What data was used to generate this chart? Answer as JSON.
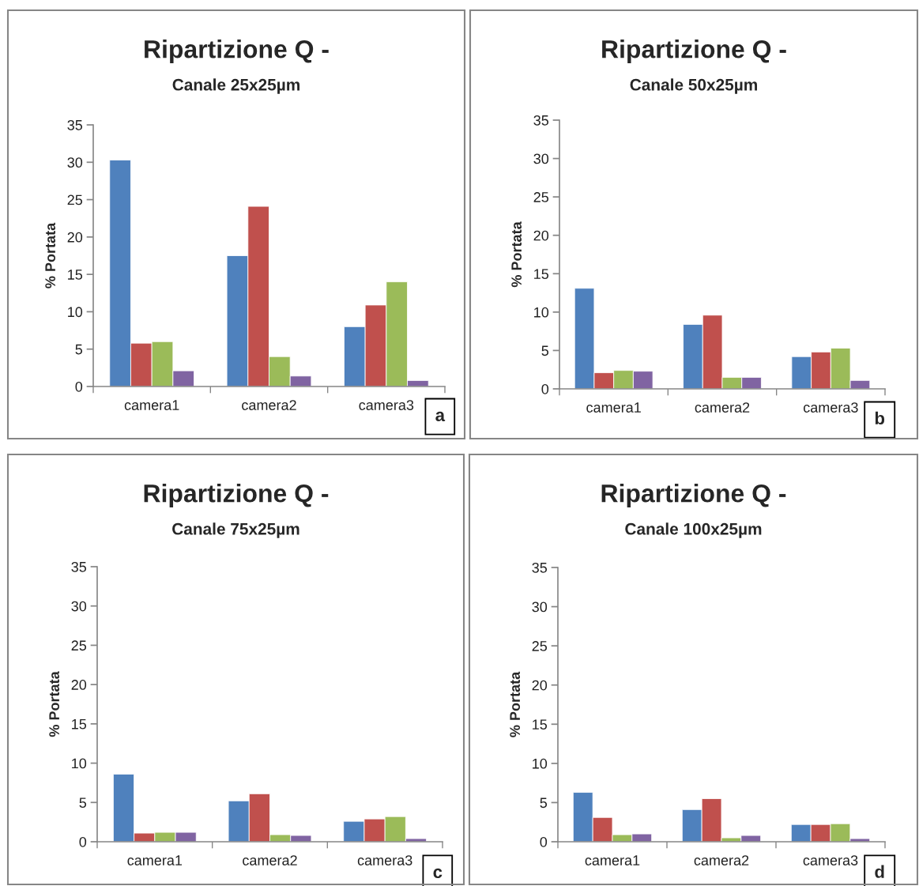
{
  "chart_data": [
    {
      "type": "bar",
      "title": "Ripartizione Q -",
      "subtitle": "Canale 25x25µm",
      "ylabel": "% Portata",
      "categories": [
        "camera1",
        "camera2",
        "camera3"
      ],
      "ylim": [
        0,
        35
      ],
      "yticks": [
        0,
        5,
        10,
        15,
        20,
        25,
        30,
        35
      ],
      "grid": false,
      "legend": false,
      "annotations": [
        "a"
      ],
      "series": [
        {
          "color": "#4f81bd",
          "values": [
            30.3,
            17.5,
            8.0
          ]
        },
        {
          "color": "#c0504d",
          "values": [
            5.8,
            24.1,
            10.9
          ]
        },
        {
          "color": "#9bbb59",
          "values": [
            6.0,
            4.0,
            14.0
          ]
        },
        {
          "color": "#8064a2",
          "values": [
            2.1,
            1.4,
            0.8
          ]
        }
      ]
    },
    {
      "type": "bar",
      "title": "Ripartizione Q -",
      "subtitle": "Canale 50x25µm",
      "ylabel": "% Portata",
      "categories": [
        "camera1",
        "camera2",
        "camera3"
      ],
      "ylim": [
        0,
        35
      ],
      "yticks": [
        0,
        5,
        10,
        15,
        20,
        25,
        30,
        35
      ],
      "grid": false,
      "legend": false,
      "annotations": [
        "b"
      ],
      "series": [
        {
          "color": "#4f81bd",
          "values": [
            13.1,
            8.4,
            4.2
          ]
        },
        {
          "color": "#c0504d",
          "values": [
            2.1,
            9.6,
            4.8
          ]
        },
        {
          "color": "#9bbb59",
          "values": [
            2.4,
            1.5,
            5.3
          ]
        },
        {
          "color": "#8064a2",
          "values": [
            2.3,
            1.5,
            1.1
          ]
        }
      ]
    },
    {
      "type": "bar",
      "title": "Ripartizione Q -",
      "subtitle": "Canale 75x25µm",
      "ylabel": "% Portata",
      "categories": [
        "camera1",
        "camera2",
        "camera3"
      ],
      "ylim": [
        0,
        35
      ],
      "yticks": [
        0,
        5,
        10,
        15,
        20,
        25,
        30,
        35
      ],
      "grid": false,
      "legend": false,
      "annotations": [
        "c"
      ],
      "series": [
        {
          "color": "#4f81bd",
          "values": [
            8.6,
            5.2,
            2.6
          ]
        },
        {
          "color": "#c0504d",
          "values": [
            1.1,
            6.1,
            2.9
          ]
        },
        {
          "color": "#9bbb59",
          "values": [
            1.2,
            0.9,
            3.2
          ]
        },
        {
          "color": "#8064a2",
          "values": [
            1.2,
            0.8,
            0.4
          ]
        }
      ]
    },
    {
      "type": "bar",
      "title": "Ripartizione Q -",
      "subtitle": "Canale 100x25µm",
      "ylabel": "% Portata",
      "categories": [
        "camera1",
        "camera2",
        "camera3"
      ],
      "ylim": [
        0,
        35
      ],
      "yticks": [
        0,
        5,
        10,
        15,
        20,
        25,
        30,
        35
      ],
      "grid": false,
      "legend": false,
      "annotations": [
        "d"
      ],
      "series": [
        {
          "color": "#4f81bd",
          "values": [
            6.3,
            4.1,
            2.2
          ]
        },
        {
          "color": "#c0504d",
          "values": [
            3.1,
            5.5,
            2.2
          ]
        },
        {
          "color": "#9bbb59",
          "values": [
            0.9,
            0.5,
            2.3
          ]
        },
        {
          "color": "#8064a2",
          "values": [
            1.0,
            0.8,
            0.4
          ]
        }
      ]
    }
  ]
}
